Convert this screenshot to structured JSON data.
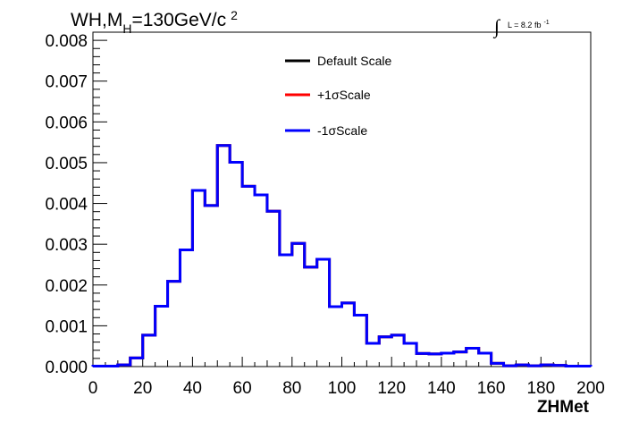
{
  "chart_data": {
    "type": "line",
    "title_parts": {
      "main": "WH,M",
      "sub": "H",
      "rest": "=130GeV/c",
      "sup": "2"
    },
    "lumi": {
      "integral": "∫",
      "text": "L = 8.2 fb",
      "sup": "-1"
    },
    "xlabel": "ZHMet",
    "ylabel": "",
    "xlim": [
      0,
      200
    ],
    "ylim": [
      0,
      0.0082
    ],
    "x_ticks": [
      0,
      20,
      40,
      60,
      80,
      100,
      120,
      140,
      160,
      180,
      200
    ],
    "x_tick_labels": [
      "0",
      "20",
      "40",
      "60",
      "80",
      "100",
      "120",
      "140",
      "160",
      "180",
      "200"
    ],
    "y_ticks": [
      0,
      0.001,
      0.002,
      0.003,
      0.004,
      0.005,
      0.006,
      0.007,
      0.008
    ],
    "y_tick_labels": [
      "0.000",
      "0.001",
      "0.002",
      "0.003",
      "0.004",
      "0.005",
      "0.006",
      "0.007",
      "0.008"
    ],
    "grid": false,
    "legend_position": "top-center",
    "bin_edges": [
      0,
      5,
      10,
      15,
      20,
      25,
      30,
      35,
      40,
      45,
      50,
      55,
      60,
      65,
      70,
      75,
      80,
      85,
      90,
      95,
      100,
      105,
      110,
      115,
      120,
      125,
      130,
      135,
      140,
      145,
      150,
      155,
      160,
      165,
      170,
      175,
      180,
      185,
      190,
      195,
      200
    ],
    "series": [
      {
        "name": "Default Scale",
        "color": "#000000",
        "values": [
          1e-05,
          1e-05,
          4e-05,
          0.00021,
          0.00077,
          0.00148,
          0.00209,
          0.00286,
          0.00432,
          0.00395,
          0.00542,
          0.00501,
          0.00442,
          0.00421,
          0.00381,
          0.00274,
          0.00302,
          0.00244,
          0.00263,
          0.00147,
          0.00156,
          0.00126,
          0.00057,
          0.00073,
          0.00077,
          0.00057,
          0.00032,
          0.00031,
          0.00033,
          0.00036,
          0.00045,
          0.00033,
          8e-05,
          2e-05,
          4e-05,
          2e-05,
          4e-05,
          3e-05,
          1e-05,
          1e-05
        ]
      },
      {
        "name": "+1σScale",
        "color": "#ff0000",
        "values": [
          1e-05,
          1e-05,
          4e-05,
          0.00021,
          0.00077,
          0.00148,
          0.00209,
          0.00286,
          0.00432,
          0.00395,
          0.00542,
          0.00501,
          0.00442,
          0.00421,
          0.00381,
          0.00274,
          0.00302,
          0.00244,
          0.00263,
          0.00147,
          0.00156,
          0.00126,
          0.00057,
          0.00073,
          0.00077,
          0.00057,
          0.00032,
          0.00031,
          0.00033,
          0.00036,
          0.00045,
          0.00033,
          8e-05,
          2e-05,
          4e-05,
          2e-05,
          4e-05,
          3e-05,
          1e-05,
          1e-05
        ]
      },
      {
        "name": "-1σScale",
        "color": "#0000ff",
        "values": [
          1e-05,
          1e-05,
          4e-05,
          0.00021,
          0.00077,
          0.00148,
          0.00209,
          0.00286,
          0.00432,
          0.00395,
          0.00542,
          0.00501,
          0.00442,
          0.00421,
          0.00381,
          0.00274,
          0.00302,
          0.00244,
          0.00263,
          0.00147,
          0.00156,
          0.00126,
          0.00057,
          0.00073,
          0.00077,
          0.00057,
          0.00032,
          0.00031,
          0.00033,
          0.00036,
          0.00045,
          0.00033,
          8e-05,
          2e-05,
          4e-05,
          2e-05,
          4e-05,
          3e-05,
          1e-05,
          1e-05
        ]
      }
    ]
  }
}
